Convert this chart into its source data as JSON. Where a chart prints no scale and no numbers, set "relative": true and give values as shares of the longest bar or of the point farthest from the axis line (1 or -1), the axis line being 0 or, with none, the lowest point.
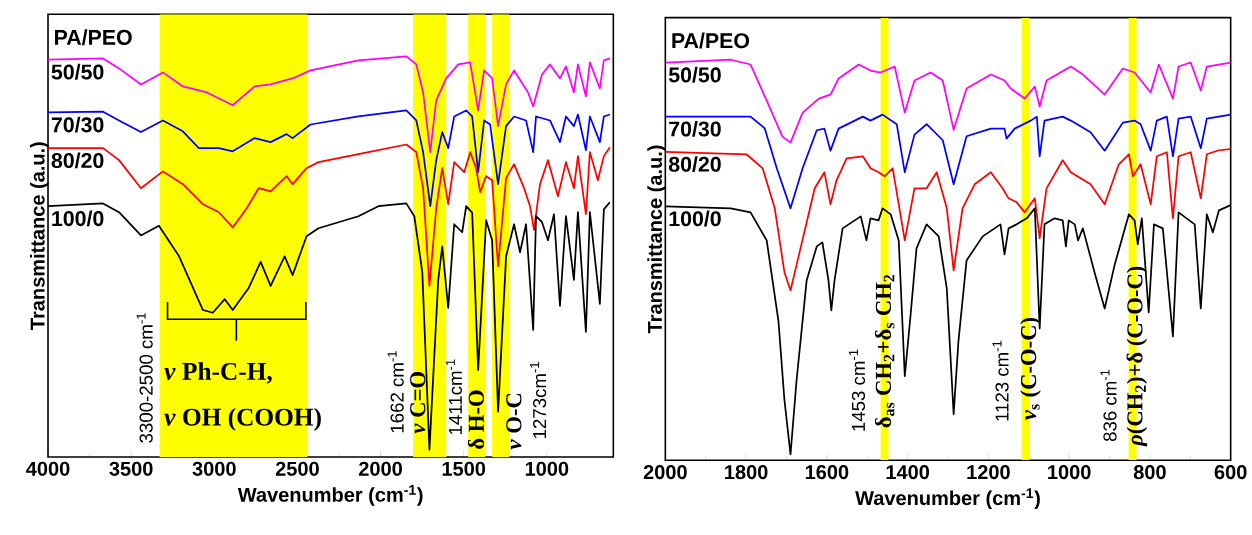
{
  "chart_data": [
    {
      "type": "line",
      "relative": true,
      "xlabel": "Wavenumber (cm$^{-1}$)",
      "ylabel": "Transmittance (a.u.)",
      "legend_title": "PA/PEO",
      "xlim": [
        4000,
        600
      ],
      "xticks": [
        4000,
        3500,
        3000,
        2500,
        2000,
        1500,
        1000
      ],
      "bands": [
        {
          "axis": "x",
          "from": 3330,
          "to": 2440,
          "color": "#ffff00"
        },
        {
          "axis": "x",
          "from": 1804,
          "to": 1605,
          "color": "#ffff00"
        },
        {
          "axis": "x",
          "from": 1473,
          "to": 1370,
          "color": "#ffff00"
        },
        {
          "axis": "x",
          "from": 1329,
          "to": 1226,
          "color": "#ffff00"
        }
      ],
      "annotations": [
        "3300-2500 cm$^{-1}$",
        "*ν* Ph-C-H,",
        "*ν* OH (COOH)",
        "1662 cm$^{-1}$",
        "*ν* C=O",
        "1411cm$^{-1}$",
        "δ H-O",
        "*ν* O-C",
        "1273cm$^{-1}$"
      ],
      "series": [
        {
          "name": "50/50",
          "color": "#ff00ff",
          "x": [
            4000,
            3669,
            3573,
            3441,
            3309,
            3189,
            3045,
            2889,
            2757,
            2661,
            2529,
            2421,
            2133,
            1845,
            1785,
            1744,
            1701,
            1665,
            1605,
            1533,
            1461,
            1413,
            1377,
            1329,
            1293,
            1245,
            1197,
            1113,
            1082,
            1029,
            981,
            921,
            885,
            837,
            813,
            765,
            741,
            681,
            657,
            621
          ],
          "values": [
            0.992,
            0.995,
            0.97,
            0.93,
            0.96,
            0.925,
            0.91,
            0.878,
            0.925,
            0.93,
            0.945,
            0.965,
            0.99,
            1.0,
            0.98,
            0.91,
            0.761,
            0.89,
            0.945,
            0.98,
            0.985,
            0.865,
            0.965,
            0.945,
            0.826,
            0.93,
            0.965,
            0.91,
            0.875,
            0.955,
            0.98,
            0.945,
            0.975,
            0.91,
            0.98,
            0.9,
            0.985,
            0.92,
            0.99,
            0.995
          ]
        },
        {
          "name": "70/30",
          "color": "#0000ff",
          "x": [
            4000,
            3669,
            3573,
            3441,
            3309,
            3189,
            3093,
            2973,
            2889,
            2757,
            2661,
            2565,
            2529,
            2421,
            2133,
            1845,
            1785,
            1744,
            1701,
            1665,
            1629,
            1593,
            1557,
            1485,
            1449,
            1413,
            1377,
            1341,
            1293,
            1245,
            1197,
            1125,
            1082,
            1065,
            981,
            921,
            885,
            837,
            813,
            765,
            741,
            681,
            657,
            621
          ],
          "values": [
            0.86,
            0.862,
            0.84,
            0.811,
            0.84,
            0.813,
            0.771,
            0.771,
            0.763,
            0.796,
            0.786,
            0.806,
            0.796,
            0.83,
            0.85,
            0.865,
            0.84,
            0.761,
            0.626,
            0.741,
            0.811,
            0.771,
            0.85,
            0.865,
            0.85,
            0.711,
            0.84,
            0.83,
            0.681,
            0.826,
            0.85,
            0.84,
            0.761,
            0.85,
            0.84,
            0.786,
            0.85,
            0.826,
            0.855,
            0.766,
            0.85,
            0.786,
            0.85,
            0.855
          ]
        },
        {
          "name": "80/20",
          "color": "#ff0000",
          "x": [
            4000,
            3669,
            3573,
            3441,
            3309,
            3189,
            3069,
            2973,
            2889,
            2805,
            2733,
            2661,
            2565,
            2529,
            2445,
            2373,
            2133,
            1845,
            1785,
            1744,
            1706,
            1665,
            1629,
            1593,
            1557,
            1497,
            1461,
            1425,
            1401,
            1365,
            1329,
            1293,
            1245,
            1197,
            1137,
            1101,
            1077,
            1041,
            993,
            933,
            885,
            837,
            813,
            765,
            741,
            693,
            657,
            621
          ],
          "values": [
            0.771,
            0.771,
            0.741,
            0.671,
            0.713,
            0.681,
            0.631,
            0.611,
            0.573,
            0.621,
            0.671,
            0.663,
            0.701,
            0.681,
            0.721,
            0.736,
            0.756,
            0.78,
            0.761,
            0.671,
            0.427,
            0.621,
            0.721,
            0.631,
            0.736,
            0.711,
            0.761,
            0.721,
            0.661,
            0.701,
            0.691,
            0.476,
            0.696,
            0.731,
            0.671,
            0.626,
            0.567,
            0.681,
            0.741,
            0.651,
            0.736,
            0.671,
            0.751,
            0.606,
            0.761,
            0.691,
            0.751,
            0.773
          ]
        },
        {
          "name": "100/0",
          "color": "#000000",
          "x": [
            4000,
            3669,
            3573,
            3441,
            3333,
            3213,
            3069,
            3009,
            2937,
            2889,
            2793,
            2721,
            2661,
            2577,
            2529,
            2445,
            2373,
            2133,
            2013,
            1845,
            1797,
            1749,
            1706,
            1653,
            1629,
            1593,
            1557,
            1509,
            1485,
            1449,
            1413,
            1365,
            1329,
            1293,
            1245,
            1197,
            1161,
            1125,
            1082,
            1065,
            1029,
            993,
            957,
            921,
            885,
            837,
            813,
            765,
            741,
            681,
            657,
            621
          ],
          "values": [
            0.626,
            0.633,
            0.611,
            0.553,
            0.577,
            0.502,
            0.367,
            0.36,
            0.394,
            0.367,
            0.422,
            0.487,
            0.427,
            0.501,
            0.454,
            0.551,
            0.571,
            0.601,
            0.626,
            0.633,
            0.601,
            0.462,
            0.018,
            0.442,
            0.526,
            0.372,
            0.581,
            0.561,
            0.626,
            0.61,
            0.217,
            0.591,
            0.541,
            0.113,
            0.501,
            0.581,
            0.511,
            0.581,
            0.317,
            0.601,
            0.586,
            0.541,
            0.606,
            0.377,
            0.601,
            0.442,
            0.611,
            0.312,
            0.611,
            0.382,
            0.618,
            0.636
          ]
        }
      ]
    },
    {
      "type": "line",
      "relative": true,
      "xlabel": "Wavenumber (cm$^{-1}$)",
      "ylabel": "Transmittance (a.u.)",
      "legend_title": "PA/PEO",
      "xlim": [
        2000,
        600
      ],
      "xticks": [
        2000,
        1800,
        1600,
        1400,
        1200,
        1000,
        800,
        600
      ],
      "bands": [
        {
          "axis": "x",
          "from": 1467,
          "to": 1447,
          "color": "#ffff00"
        },
        {
          "axis": "x",
          "from": 1118,
          "to": 1098,
          "color": "#ffff00"
        },
        {
          "axis": "x",
          "from": 853,
          "to": 833,
          "color": "#ffff00"
        }
      ],
      "annotations": [
        "1453 cm$^{-1}$",
        "δ$_{as}$ CH$_{2}$+δ$_{s}$ CH$_{2}$",
        "1123 cm$^{-1}$",
        "*ν*$_{s}$ (C-O-C)",
        "836 cm$^{-1}$",
        "*ρ*(CH$_{2}$)+δ (C-O-C)"
      ],
      "series": [
        {
          "name": "50/50",
          "color": "#ff00ff",
          "x": [
            2000,
            1838,
            1789,
            1749,
            1710,
            1690,
            1660,
            1620,
            1606,
            1591,
            1571,
            1521,
            1492,
            1467,
            1432,
            1407,
            1383,
            1343,
            1313,
            1286,
            1254,
            1194,
            1160,
            1145,
            1110,
            1085,
            1073,
            1056,
            996,
            966,
            912,
            867,
            838,
            798,
            778,
            743,
            729,
            699,
            674,
            659,
            600
          ],
          "values": [
            0.993,
            1.0,
            0.988,
            0.898,
            0.808,
            0.793,
            0.868,
            0.903,
            0.908,
            0.913,
            0.953,
            0.988,
            0.973,
            0.968,
            0.983,
            0.868,
            0.948,
            0.968,
            0.948,
            0.825,
            0.928,
            0.963,
            0.948,
            0.928,
            0.903,
            0.933,
            0.883,
            0.948,
            0.983,
            0.963,
            0.913,
            0.978,
            0.968,
            0.918,
            0.988,
            0.903,
            0.983,
            0.993,
            0.923,
            0.983,
            0.993
          ]
        },
        {
          "name": "70/30",
          "color": "#0000ff",
          "x": [
            2000,
            1789,
            1754,
            1724,
            1690,
            1660,
            1625,
            1606,
            1591,
            1571,
            1511,
            1492,
            1462,
            1427,
            1407,
            1383,
            1353,
            1313,
            1286,
            1254,
            1194,
            1160,
            1155,
            1135,
            1095,
            1080,
            1073,
            1061,
            1016,
            996,
            947,
            912,
            867,
            838,
            823,
            798,
            783,
            758,
            743,
            729,
            699,
            674,
            659,
            600
          ],
          "values": [
            0.858,
            0.858,
            0.829,
            0.729,
            0.629,
            0.729,
            0.824,
            0.828,
            0.773,
            0.828,
            0.858,
            0.848,
            0.863,
            0.839,
            0.719,
            0.813,
            0.839,
            0.799,
            0.689,
            0.809,
            0.828,
            0.828,
            0.803,
            0.828,
            0.848,
            0.858,
            0.759,
            0.848,
            0.858,
            0.848,
            0.819,
            0.773,
            0.843,
            0.848,
            0.839,
            0.773,
            0.848,
            0.858,
            0.759,
            0.853,
            0.858,
            0.779,
            0.853,
            0.863
          ]
        },
        {
          "name": "80/20",
          "color": "#ff0000",
          "x": [
            2000,
            1799,
            1759,
            1729,
            1705,
            1690,
            1670,
            1630,
            1606,
            1591,
            1576,
            1551,
            1511,
            1492,
            1472,
            1457,
            1437,
            1407,
            1383,
            1353,
            1328,
            1303,
            1286,
            1264,
            1234,
            1194,
            1165,
            1150,
            1130,
            1110,
            1085,
            1073,
            1056,
            1016,
            996,
            947,
            912,
            877,
            852,
            842,
            823,
            798,
            783,
            758,
            743,
            729,
            699,
            674,
            659,
            629,
            600
          ],
          "values": [
            0.77,
            0.764,
            0.729,
            0.629,
            0.469,
            0.424,
            0.509,
            0.679,
            0.719,
            0.639,
            0.699,
            0.754,
            0.759,
            0.729,
            0.719,
            0.709,
            0.729,
            0.549,
            0.679,
            0.679,
            0.719,
            0.629,
            0.474,
            0.629,
            0.689,
            0.719,
            0.679,
            0.654,
            0.644,
            0.619,
            0.654,
            0.554,
            0.679,
            0.749,
            0.719,
            0.689,
            0.639,
            0.739,
            0.764,
            0.709,
            0.739,
            0.639,
            0.759,
            0.769,
            0.604,
            0.759,
            0.769,
            0.654,
            0.764,
            0.774,
            0.777
          ]
        },
        {
          "name": "100/0",
          "color": "#000000",
          "x": [
            2000,
            1838,
            1789,
            1749,
            1720,
            1705,
            1690,
            1675,
            1650,
            1625,
            1611,
            1596,
            1589,
            1581,
            1561,
            1516,
            1502,
            1492,
            1472,
            1462,
            1442,
            1422,
            1407,
            1393,
            1378,
            1353,
            1323,
            1303,
            1286,
            1274,
            1254,
            1214,
            1170,
            1160,
            1150,
            1130,
            1105,
            1085,
            1073,
            1061,
            1036,
            1016,
            1008,
            1001,
            986,
            978,
            966,
            937,
            912,
            887,
            852,
            838,
            830,
            820,
            803,
            790,
            768,
            743,
            729,
            709,
            689,
            674,
            659,
            644,
            629,
            600
          ],
          "values": [
            0.634,
            0.629,
            0.619,
            0.549,
            0.349,
            0.15,
            0.015,
            0.2,
            0.449,
            0.534,
            0.544,
            0.449,
            0.374,
            0.449,
            0.579,
            0.609,
            0.549,
            0.604,
            0.599,
            0.629,
            0.614,
            0.549,
            0.21,
            0.359,
            0.529,
            0.589,
            0.559,
            0.429,
            0.115,
            0.299,
            0.499,
            0.559,
            0.589,
            0.514,
            0.579,
            0.589,
            0.604,
            0.629,
            0.329,
            0.589,
            0.604,
            0.599,
            0.534,
            0.599,
            0.589,
            0.549,
            0.579,
            0.469,
            0.379,
            0.489,
            0.614,
            0.599,
            0.539,
            0.604,
            0.369,
            0.589,
            0.579,
            0.309,
            0.619,
            0.604,
            0.589,
            0.379,
            0.614,
            0.569,
            0.624,
            0.637
          ]
        }
      ]
    }
  ]
}
